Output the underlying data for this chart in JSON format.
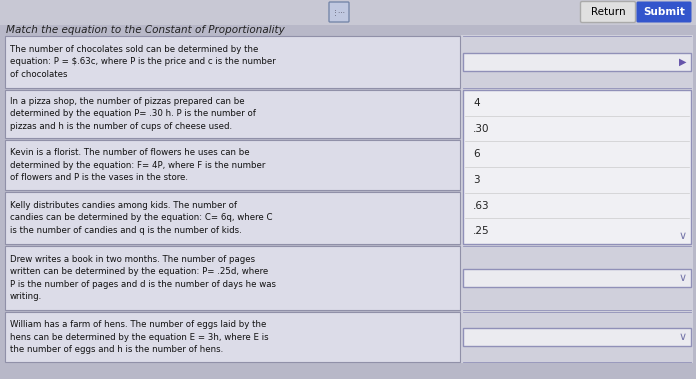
{
  "title": "Match the equation to the Constant of Proportionality",
  "bg_color": "#b8b8c8",
  "left_box_bg": "#dcdce8",
  "left_box_border": "#9090a8",
  "dropdown_bg": "#ebebf0",
  "dropdown_border": "#9090b8",
  "dropdown_open_bg": "#ebebf0",
  "button_return_bg": "#dcdcdc",
  "button_return_border": "#aaaaaa",
  "button_return_text": "Return",
  "button_submit_bg": "#3355cc",
  "button_submit_text": "Submit",
  "title_color": "#222222",
  "rows": [
    {
      "text": "The number of chocolates sold can be determined by the\nequation: P = $.63c, where P is the price and c is the number\nof chocolates"
    },
    {
      "text": "In a pizza shop, the number of pizzas prepared can be\ndetermined by the equation P= .30 h. P is the number of\npizzas and h is the number of cups of cheese used."
    },
    {
      "text": "Kevin is a florist. The number of flowers he uses can be\ndetermined by the equation: F= 4P, where F is the number\nof flowers and P is the vases in the store."
    },
    {
      "text": "Kelly distributes candies among kids. The number of\ncandies can be determined by the equation: C= 6q, where C\nis the number of candies and q is the number of kids."
    },
    {
      "text": "Drew writes a book in two months. The number of pages\nwritten can be determined by the equation: P= .25d, where\nP is the number of pages and d is the number of days he was\nwriting."
    },
    {
      "text": "William has a farm of hens. The number of eggs laid by the\nhens can be determined by the equation E = 3h, where E is\nthe number of eggs and h is the number of hens."
    }
  ],
  "dropdown_options": [
    "4",
    ".30",
    "6",
    "3",
    ".63",
    ".25"
  ],
  "arrow_color": "#6655aa",
  "chevron_color": "#7777aa",
  "border_color": "#9090b8"
}
